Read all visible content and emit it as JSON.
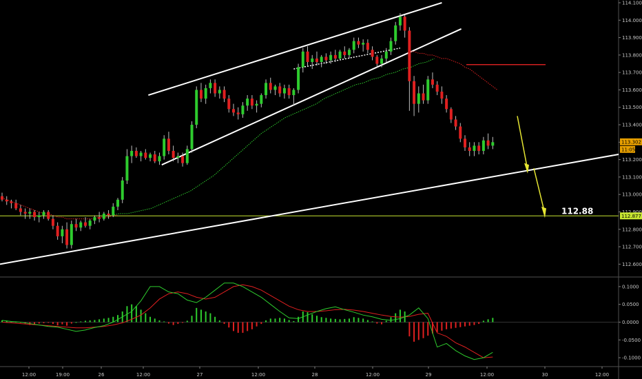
{
  "chart_data": [
    {
      "type": "candlestick",
      "ylim": [
        112.55,
        114.1
      ],
      "y_ticks": [
        "114.100",
        "114.000",
        "113.900",
        "113.800",
        "113.700",
        "113.600",
        "113.500",
        "113.400",
        "113.300",
        "113.200",
        "113.100",
        "113.000",
        "112.900",
        "112.800",
        "112.700",
        "112.600"
      ],
      "x_ticks": [
        "12:00",
        "19:00",
        "26",
        "12:00",
        "27",
        "12:00",
        "28",
        "12:00",
        "29",
        "12:00",
        "30",
        "12:00"
      ],
      "colors": {
        "up": "#2ecc2e",
        "down": "#e02020",
        "trendline": "#ffffff",
        "level": "#c8e632",
        "resistance": "#d42020",
        "arrow": "#e6e632"
      },
      "current_price_tag": "113.302",
      "countdown_tag": "11:05",
      "level_tag": "112.877",
      "target_label": "112.88",
      "candles": [
        [
          112.99,
          113.01,
          112.96,
          112.97
        ],
        [
          112.97,
          112.99,
          112.94,
          112.96
        ],
        [
          112.96,
          112.97,
          112.92,
          112.95
        ],
        [
          112.95,
          112.97,
          112.91,
          112.92
        ],
        [
          112.92,
          112.94,
          112.88,
          112.9
        ],
        [
          112.9,
          112.92,
          112.86,
          112.89
        ],
        [
          112.89,
          112.92,
          112.86,
          112.9
        ],
        [
          112.9,
          112.91,
          112.85,
          112.87
        ],
        [
          112.87,
          112.9,
          112.84,
          112.88
        ],
        [
          112.88,
          112.91,
          112.86,
          112.9
        ],
        [
          112.9,
          112.91,
          112.85,
          112.86
        ],
        [
          112.86,
          112.88,
          112.8,
          112.82
        ],
        [
          112.82,
          112.84,
          112.74,
          112.76
        ],
        [
          112.76,
          112.82,
          112.72,
          112.8
        ],
        [
          112.8,
          112.84,
          112.69,
          112.71
        ],
        [
          112.71,
          112.85,
          112.69,
          112.83
        ],
        [
          112.83,
          112.86,
          112.79,
          112.81
        ],
        [
          112.81,
          112.85,
          112.79,
          112.84
        ],
        [
          112.84,
          112.87,
          112.81,
          112.82
        ],
        [
          112.82,
          112.86,
          112.8,
          112.85
        ],
        [
          112.85,
          112.88,
          112.83,
          112.87
        ],
        [
          112.87,
          112.9,
          112.84,
          112.86
        ],
        [
          112.86,
          112.9,
          112.85,
          112.89
        ],
        [
          112.89,
          112.91,
          112.86,
          112.88
        ],
        [
          112.88,
          112.95,
          112.87,
          112.93
        ],
        [
          112.93,
          112.98,
          112.91,
          112.97
        ],
        [
          112.97,
          113.1,
          112.95,
          113.08
        ],
        [
          113.08,
          113.26,
          113.06,
          113.22
        ],
        [
          113.22,
          113.28,
          113.18,
          113.25
        ],
        [
          113.25,
          113.27,
          113.21,
          113.22
        ],
        [
          113.22,
          113.25,
          113.19,
          113.24
        ],
        [
          113.24,
          113.26,
          113.2,
          113.21
        ],
        [
          113.21,
          113.24,
          113.19,
          113.23
        ],
        [
          113.23,
          113.25,
          113.18,
          113.19
        ],
        [
          113.19,
          113.24,
          113.17,
          113.22
        ],
        [
          113.22,
          113.34,
          113.2,
          113.32
        ],
        [
          113.32,
          113.36,
          113.23,
          113.25
        ],
        [
          113.25,
          113.28,
          113.19,
          113.21
        ],
        [
          113.21,
          113.24,
          113.18,
          113.22
        ],
        [
          113.22,
          113.24,
          113.16,
          113.18
        ],
        [
          113.18,
          113.28,
          113.17,
          113.26
        ],
        [
          113.26,
          113.42,
          113.24,
          113.4
        ],
        [
          113.4,
          113.62,
          113.38,
          113.6
        ],
        [
          113.6,
          113.64,
          113.53,
          113.55
        ],
        [
          113.55,
          113.63,
          113.52,
          113.61
        ],
        [
          113.61,
          113.66,
          113.58,
          113.64
        ],
        [
          113.64,
          113.66,
          113.56,
          113.58
        ],
        [
          113.58,
          113.62,
          113.55,
          113.6
        ],
        [
          113.6,
          113.62,
          113.53,
          113.55
        ],
        [
          113.55,
          113.57,
          113.47,
          113.49
        ],
        [
          113.49,
          113.52,
          113.45,
          113.47
        ],
        [
          113.47,
          113.5,
          113.43,
          113.46
        ],
        [
          113.46,
          113.53,
          113.44,
          113.51
        ],
        [
          113.51,
          113.57,
          113.48,
          113.55
        ],
        [
          113.55,
          113.57,
          113.49,
          113.51
        ],
        [
          113.51,
          113.54,
          113.47,
          113.52
        ],
        [
          113.52,
          113.58,
          113.5,
          113.57
        ],
        [
          113.57,
          113.66,
          113.55,
          113.64
        ],
        [
          113.64,
          113.67,
          113.58,
          113.6
        ],
        [
          113.6,
          113.63,
          113.57,
          113.62
        ],
        [
          113.62,
          113.64,
          113.56,
          113.58
        ],
        [
          113.58,
          113.63,
          113.55,
          113.61
        ],
        [
          113.61,
          113.63,
          113.55,
          113.57
        ],
        [
          113.57,
          113.61,
          113.51,
          113.6
        ],
        [
          113.6,
          113.75,
          113.58,
          113.73
        ],
        [
          113.73,
          113.84,
          113.7,
          113.82
        ],
        [
          113.82,
          113.85,
          113.74,
          113.76
        ],
        [
          113.76,
          113.8,
          113.72,
          113.78
        ],
        [
          113.78,
          113.82,
          113.74,
          113.76
        ],
        [
          113.76,
          113.8,
          113.73,
          113.79
        ],
        [
          113.79,
          113.81,
          113.75,
          113.77
        ],
        [
          113.77,
          113.82,
          113.75,
          113.8
        ],
        [
          113.8,
          113.83,
          113.76,
          113.78
        ],
        [
          113.78,
          113.83,
          113.77,
          113.82
        ],
        [
          113.82,
          113.85,
          113.78,
          113.8
        ],
        [
          113.8,
          113.84,
          113.78,
          113.83
        ],
        [
          113.83,
          113.9,
          113.81,
          113.88
        ],
        [
          113.88,
          113.9,
          113.84,
          113.86
        ],
        [
          113.86,
          113.89,
          113.82,
          113.87
        ],
        [
          113.87,
          113.89,
          113.81,
          113.83
        ],
        [
          113.83,
          113.85,
          113.77,
          113.79
        ],
        [
          113.79,
          113.8,
          113.73,
          113.75
        ],
        [
          113.75,
          113.8,
          113.73,
          113.78
        ],
        [
          113.78,
          113.84,
          113.76,
          113.82
        ],
        [
          113.82,
          113.9,
          113.8,
          113.88
        ],
        [
          113.88,
          113.99,
          113.86,
          113.97
        ],
        [
          113.97,
          114.04,
          113.94,
          114.02
        ],
        [
          114.02,
          114.03,
          113.9,
          113.94
        ],
        [
          113.94,
          113.96,
          113.48,
          113.65
        ],
        [
          113.65,
          113.68,
          113.45,
          113.52
        ],
        [
          113.52,
          113.62,
          113.47,
          113.58
        ],
        [
          113.58,
          113.63,
          113.52,
          113.54
        ],
        [
          113.54,
          113.68,
          113.52,
          113.66
        ],
        [
          113.66,
          113.7,
          113.61,
          113.63
        ],
        [
          113.63,
          113.65,
          113.57,
          113.59
        ],
        [
          113.59,
          113.62,
          113.52,
          113.55
        ],
        [
          113.55,
          113.57,
          113.47,
          113.49
        ],
        [
          113.49,
          113.5,
          113.41,
          113.43
        ],
        [
          113.43,
          113.45,
          113.37,
          113.39
        ],
        [
          113.39,
          113.41,
          113.3,
          113.32
        ],
        [
          113.32,
          113.34,
          113.25,
          113.27
        ],
        [
          113.27,
          113.3,
          113.22,
          113.25
        ],
        [
          113.25,
          113.3,
          113.22,
          113.28
        ],
        [
          113.28,
          113.3,
          113.23,
          113.25
        ],
        [
          113.25,
          113.33,
          113.23,
          113.31
        ],
        [
          113.31,
          113.35,
          113.26,
          113.28
        ],
        [
          113.28,
          113.33,
          113.26,
          113.3
        ]
      ],
      "ma_red": [
        112.98,
        112.97,
        112.96,
        112.95,
        112.94,
        112.93,
        112.92,
        112.91,
        112.9,
        112.89,
        112.89,
        112.88,
        112.87,
        112.87,
        112.86,
        112.86,
        112.86,
        112.86,
        112.86,
        112.86,
        112.86,
        112.87,
        112.87,
        112.87,
        112.88,
        112.88
      ],
      "ma_red_tail": [
        113.82,
        113.82,
        113.81,
        113.81,
        113.8,
        113.8,
        113.79,
        113.78,
        113.78,
        113.77,
        113.76,
        113.75,
        113.73,
        113.72,
        113.7,
        113.68,
        113.66,
        113.64,
        113.62,
        113.6
      ],
      "ma_green": [
        112.88,
        112.88,
        112.89,
        112.89,
        112.9,
        112.91,
        112.92,
        112.94,
        112.96,
        112.98,
        113.0,
        113.02,
        113.05,
        113.08,
        113.11,
        113.15,
        113.19,
        113.23,
        113.27,
        113.31,
        113.35,
        113.38,
        113.41,
        113.44,
        113.46,
        113.48,
        113.5,
        113.52,
        113.55,
        113.57,
        113.59,
        113.61,
        113.63,
        113.64,
        113.66,
        113.67,
        113.69,
        113.7,
        113.72,
        113.73,
        113.75,
        113.76,
        113.78
      ],
      "macd_hist": [
        0.005,
        0.004,
        0.002,
        0.001,
        -0.002,
        -0.004,
        -0.008,
        -0.006,
        -0.004,
        -0.003,
        -0.002,
        -0.005,
        -0.009,
        -0.006,
        -0.01,
        -0.004,
        0.0,
        0.002,
        0.004,
        0.005,
        0.006,
        0.008,
        0.01,
        0.012,
        0.015,
        0.02,
        0.03,
        0.045,
        0.05,
        0.045,
        0.035,
        0.025,
        0.015,
        0.01,
        0.005,
        0.002,
        -0.004,
        -0.008,
        -0.005,
        -0.002,
        0.004,
        0.018,
        0.04,
        0.035,
        0.03,
        0.025,
        0.015,
        0.005,
        -0.005,
        -0.015,
        -0.025,
        -0.03,
        -0.03,
        -0.025,
        -0.02,
        -0.012,
        -0.005,
        0.005,
        0.01,
        0.01,
        0.012,
        0.01,
        0.006,
        0.003,
        0.015,
        0.03,
        0.028,
        0.022,
        0.018,
        0.014,
        0.012,
        0.01,
        0.009,
        0.008,
        0.009,
        0.01,
        0.014,
        0.012,
        0.01,
        0.006,
        0.002,
        -0.004,
        -0.006,
        0.004,
        0.014,
        0.025,
        0.035,
        0.03,
        -0.04,
        -0.055,
        -0.05,
        -0.045,
        -0.038,
        -0.032,
        -0.028,
        -0.024,
        -0.02,
        -0.018,
        -0.016,
        -0.014,
        -0.012,
        -0.01,
        -0.008,
        -0.005,
        0.004,
        0.008,
        0.012
      ],
      "macd_green": [
        0.005,
        0.002,
        0.0,
        -0.004,
        -0.008,
        -0.012,
        -0.014,
        -0.02,
        -0.026,
        -0.022,
        -0.015,
        -0.01,
        0.0,
        0.015,
        0.03,
        0.06,
        0.1,
        0.1,
        0.085,
        0.08,
        0.062,
        0.055,
        0.07,
        0.09,
        0.11,
        0.11,
        0.1,
        0.085,
        0.07,
        0.05,
        0.03,
        0.012,
        0.01,
        0.02,
        0.03,
        0.038,
        0.043,
        0.035,
        0.028,
        0.02,
        0.015,
        0.008,
        0.005,
        0.01,
        0.02,
        0.04,
        0.01,
        -0.07,
        -0.06,
        -0.08,
        -0.095,
        -0.105,
        -0.1,
        -0.085
      ],
      "macd_red": [
        0.0,
        -0.002,
        -0.004,
        -0.006,
        -0.008,
        -0.01,
        -0.012,
        -0.014,
        -0.016,
        -0.016,
        -0.014,
        -0.012,
        -0.008,
        -0.002,
        0.008,
        0.02,
        0.04,
        0.065,
        0.08,
        0.085,
        0.08,
        0.07,
        0.065,
        0.07,
        0.085,
        0.1,
        0.105,
        0.1,
        0.09,
        0.075,
        0.06,
        0.045,
        0.035,
        0.03,
        0.03,
        0.032,
        0.035,
        0.036,
        0.034,
        0.03,
        0.025,
        0.02,
        0.016,
        0.014,
        0.016,
        0.022,
        0.025,
        -0.03,
        -0.04,
        -0.058,
        -0.07,
        -0.085,
        -0.1,
        -0.098
      ],
      "macd_ylim": [
        -0.125,
        0.125
      ],
      "macd_y_ticks": [
        "0.1000",
        "0.0500",
        "0.0000",
        "-0.0500",
        "-0.1000"
      ]
    }
  ]
}
